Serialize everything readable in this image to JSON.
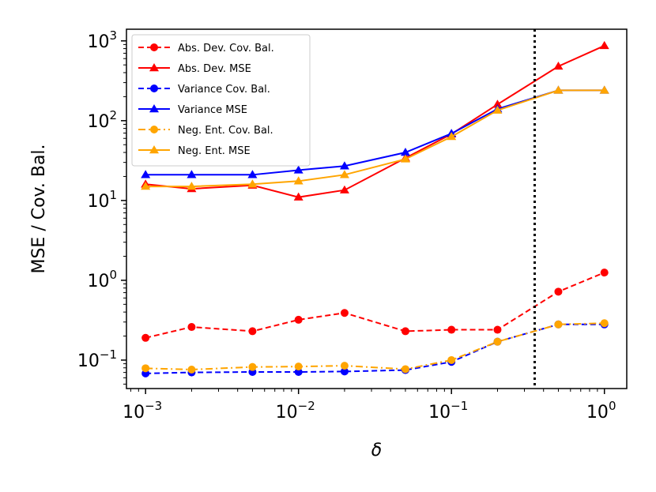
{
  "chart_data": {
    "type": "line",
    "xscale": "log",
    "yscale": "log",
    "xlabel": "δ",
    "ylabel": "MSE / Cov. Bal.",
    "xlim": [
      0.00075,
      1.4
    ],
    "ylim": [
      0.044,
      1400
    ],
    "x": [
      0.001,
      0.002,
      0.005,
      0.01,
      0.02,
      0.05,
      0.1,
      0.2,
      0.5,
      1.0
    ],
    "xticks": [
      {
        "value": 0.001,
        "label": "10",
        "exp": "−3"
      },
      {
        "value": 0.01,
        "label": "10",
        "exp": "−2"
      },
      {
        "value": 0.1,
        "label": "10",
        "exp": "−1"
      },
      {
        "value": 1,
        "label": "10",
        "exp": "0"
      }
    ],
    "yticks": [
      {
        "value": 0.1,
        "label": "10",
        "exp": "−1"
      },
      {
        "value": 1,
        "label": "10",
        "exp": "0"
      },
      {
        "value": 10,
        "label": "10",
        "exp": "1"
      },
      {
        "value": 100,
        "label": "10",
        "exp": "2"
      },
      {
        "value": 1000,
        "label": "10",
        "exp": "3"
      }
    ],
    "vline": {
      "x": 0.35,
      "style": "dotted",
      "color": "#000000"
    },
    "legend_position": "top-left",
    "series": [
      {
        "name": "Abs. Dev. Cov. Bal.",
        "color": "#ff0000",
        "dash": "dashed",
        "marker": "circle",
        "values": [
          0.19,
          0.26,
          0.23,
          0.32,
          0.39,
          0.23,
          0.24,
          0.24,
          0.72,
          1.25
        ]
      },
      {
        "name": "Abs. Dev. MSE",
        "color": "#ff0000",
        "dash": "solid",
        "marker": "triangle",
        "values": [
          16,
          14,
          15.5,
          11,
          13.5,
          34,
          68,
          160,
          480,
          870
        ]
      },
      {
        "name": "Variance Cov. Bal.",
        "color": "#0000ff",
        "dash": "dashed",
        "marker": "circle",
        "values": [
          0.068,
          0.07,
          0.071,
          0.071,
          0.072,
          0.075,
          0.095,
          0.17,
          0.28,
          0.28
        ]
      },
      {
        "name": "Variance MSE",
        "color": "#0000ff",
        "dash": "solid",
        "marker": "triangle",
        "values": [
          21,
          21,
          21,
          24,
          27,
          40,
          69,
          140,
          240,
          240
        ]
      },
      {
        "name": "Neg. Ent. Cov. Bal.",
        "color": "#ffa500",
        "dash": "dashdot",
        "marker": "circle",
        "values": [
          0.079,
          0.076,
          0.082,
          0.083,
          0.085,
          0.077,
          0.1,
          0.17,
          0.28,
          0.29
        ]
      },
      {
        "name": "Neg. Ent. MSE",
        "color": "#ffa500",
        "dash": "solid",
        "marker": "triangle",
        "values": [
          15,
          15,
          16,
          17.5,
          21,
          33,
          63,
          135,
          240,
          240
        ]
      }
    ]
  }
}
